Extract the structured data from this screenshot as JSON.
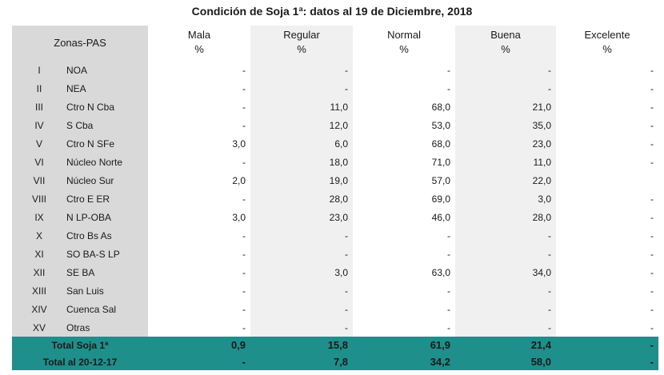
{
  "title": "Condición de Soja 1ª: datos al 19 de Diciembre, 2018",
  "header": {
    "zonas": "Zonas-PAS",
    "columns": [
      {
        "name": "Mala",
        "unit": "%"
      },
      {
        "name": "Regular",
        "unit": "%"
      },
      {
        "name": "Normal",
        "unit": "%"
      },
      {
        "name": "Buena",
        "unit": "%"
      },
      {
        "name": "Excelente",
        "unit": "%"
      }
    ]
  },
  "rows": [
    {
      "roman": "I",
      "zone": "NOA",
      "values": [
        "-",
        "-",
        "-",
        "-",
        "-"
      ]
    },
    {
      "roman": "II",
      "zone": "NEA",
      "values": [
        "-",
        "-",
        "-",
        "-",
        "-"
      ]
    },
    {
      "roman": "III",
      "zone": "Ctro N Cba",
      "values": [
        "-",
        "11,0",
        "68,0",
        "21,0",
        "-"
      ]
    },
    {
      "roman": "IV",
      "zone": "S Cba",
      "values": [
        "-",
        "12,0",
        "53,0",
        "35,0",
        "-"
      ]
    },
    {
      "roman": "V",
      "zone": "Ctro N SFe",
      "values": [
        "3,0",
        "6,0",
        "68,0",
        "23,0",
        "-"
      ]
    },
    {
      "roman": "VI",
      "zone": "Núcleo Norte",
      "values": [
        "-",
        "18,0",
        "71,0",
        "11,0",
        "-"
      ]
    },
    {
      "roman": "VII",
      "zone": "Núcleo Sur",
      "values": [
        "2,0",
        "19,0",
        "57,0",
        "22,0",
        ""
      ]
    },
    {
      "roman": "VIII",
      "zone": "Ctro E ER",
      "values": [
        "-",
        "28,0",
        "69,0",
        "3,0",
        "-"
      ]
    },
    {
      "roman": "IX",
      "zone": "N LP-OBA",
      "values": [
        "3,0",
        "23,0",
        "46,0",
        "28,0",
        "-"
      ]
    },
    {
      "roman": "X",
      "zone": "Ctro Bs As",
      "values": [
        "-",
        "-",
        "-",
        "-",
        "-"
      ]
    },
    {
      "roman": "XI",
      "zone": "SO BA-S LP",
      "values": [
        "-",
        "-",
        "-",
        "-",
        "-"
      ]
    },
    {
      "roman": "XII",
      "zone": "SE BA",
      "values": [
        "-",
        "3,0",
        "63,0",
        "34,0",
        "-"
      ]
    },
    {
      "roman": "XIII",
      "zone": "San Luis",
      "values": [
        "-",
        "-",
        "-",
        "-",
        "-"
      ]
    },
    {
      "roman": "XIV",
      "zone": "Cuenca Sal",
      "values": [
        "-",
        "-",
        "-",
        "-",
        "-"
      ]
    },
    {
      "roman": "XV",
      "zone": "Otras",
      "values": [
        "-",
        "-",
        "-",
        "-",
        "-"
      ]
    }
  ],
  "totals": [
    {
      "label": "Total Soja 1ª",
      "values": [
        "0,9",
        "15,8",
        "61,9",
        "21,4",
        "-"
      ]
    },
    {
      "label": "Total al 20-12-17",
      "values": [
        "-",
        "7,8",
        "34,2",
        "58,0",
        "-"
      ]
    }
  ],
  "colors": {
    "total_row_bg": "#1f8f8c",
    "zone_bg": "#d9d9d9",
    "stripe_bg": "#f0f0f0"
  }
}
